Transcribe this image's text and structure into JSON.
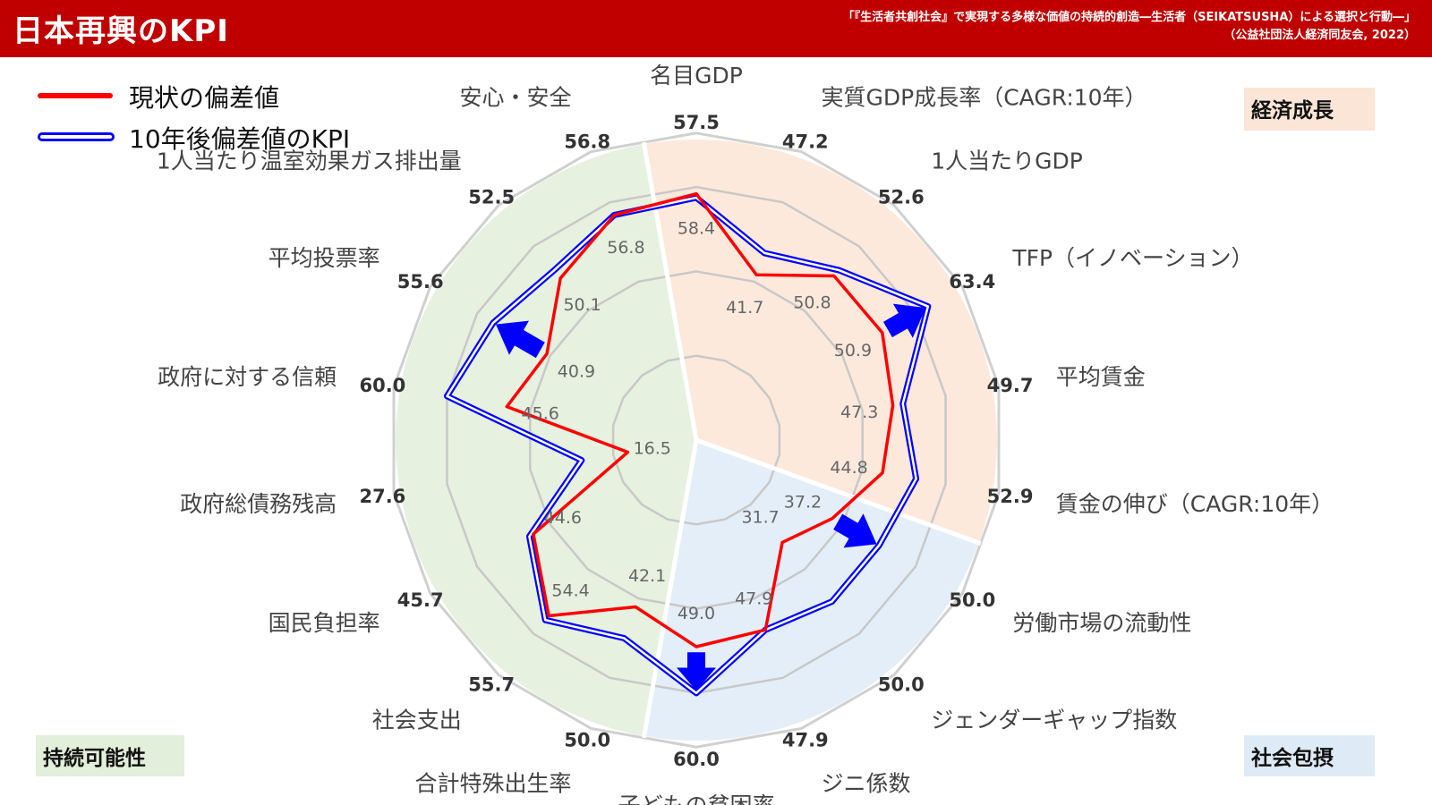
{
  "header": {
    "title": "日本再興のKPI",
    "source_line1": "「『生活者共創社会』で実現する多様な価値の持続的創造―生活者（SEIKATSUSHA）による選択と行動―」",
    "source_line2": "（公益社団法人経済同友会, 2022）"
  },
  "legend": {
    "current_label": "現状の偏差値",
    "target_label": "10年後偏差値のKPI"
  },
  "categories": {
    "economy": "経済成長",
    "social": "社会包摂",
    "sustain": "持続可能性"
  },
  "colors": {
    "header": "#c00000",
    "current": "#ff0000",
    "target": "#0000ff",
    "economy_bg": "#fbe5d6",
    "social_bg": "#deebf7",
    "sustain_bg": "#e2efda"
  },
  "chart_data": {
    "type": "radar",
    "rlim": [
      0,
      70
    ],
    "grid_rings": [
      20,
      40,
      60
    ],
    "axes": [
      {
        "label": "名目GDP",
        "current": 58.4,
        "target": 57.5,
        "group": "economy"
      },
      {
        "label": "実質GDP成長率（CAGR:10年）",
        "current": 41.7,
        "target": 47.2,
        "group": "economy"
      },
      {
        "label": "1人当たりGDP",
        "current": 50.8,
        "target": 52.6,
        "group": "economy"
      },
      {
        "label": "TFP（イノベーション）",
        "current": 50.9,
        "target": 63.4,
        "group": "economy"
      },
      {
        "label": "平均賃金",
        "current": 47.3,
        "target": 49.7,
        "group": "economy"
      },
      {
        "label": "賃金の伸び（CAGR:10年）",
        "current": 44.8,
        "target": 52.9,
        "group": "economy"
      },
      {
        "label": "労働市場の流動性",
        "current": 37.2,
        "target": 50.0,
        "group": "social"
      },
      {
        "label": "ジェンダーギャップ指数",
        "current": 31.7,
        "target": 50.0,
        "group": "social"
      },
      {
        "label": "ジニ係数",
        "current": 47.9,
        "target": 47.9,
        "group": "social"
      },
      {
        "label": "子どもの貧困率",
        "current": 49.0,
        "target": 60.0,
        "group": "social"
      },
      {
        "label": "合計特殊出生率",
        "current": 42.1,
        "target": 50.0,
        "group": "sustain"
      },
      {
        "label": "社会支出",
        "current": 54.4,
        "target": 55.7,
        "group": "sustain"
      },
      {
        "label": "国民負担率",
        "current": 44.6,
        "target": 45.7,
        "group": "sustain"
      },
      {
        "label": "政府総債務残高",
        "current": 16.5,
        "target": 27.6,
        "group": "sustain"
      },
      {
        "label": "政府に対する信頼",
        "current": 45.6,
        "target": 60.0,
        "group": "sustain"
      },
      {
        "label": "平均投票率",
        "current": 40.9,
        "target": 55.6,
        "group": "sustain"
      },
      {
        "label": "1人当たり温室効果ガス排出量",
        "current": 50.1,
        "target": 52.5,
        "group": "sustain"
      },
      {
        "label": "安心・安全",
        "current": 56.8,
        "target": 56.8,
        "group": "sustain"
      }
    ],
    "arrows_at": [
      "TFP（イノベーション）",
      "労働市場の流動性",
      "子どもの貧困率",
      "平均投票率"
    ]
  }
}
